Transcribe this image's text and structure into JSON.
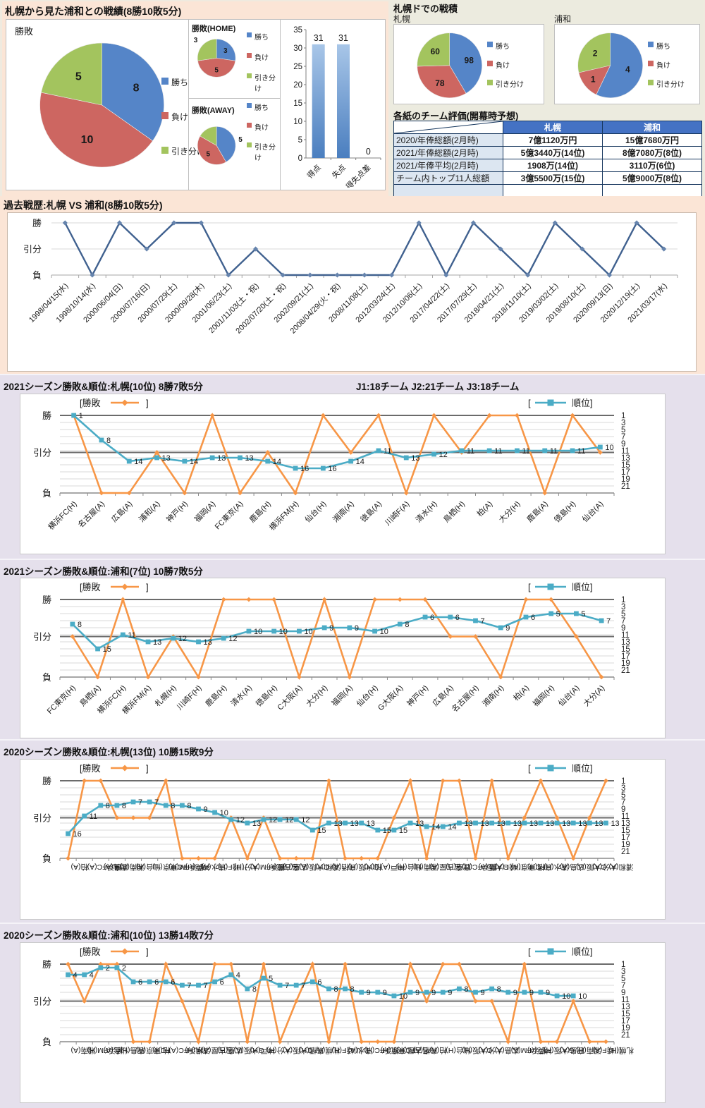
{
  "palette": {
    "win_blue": "#5585c8",
    "lose_red": "#cd6661",
    "draw_green": "#a3c45e",
    "orange": "#f79646",
    "teal": "#4bacc6",
    "history_line": "#40618f",
    "history_marker": "#6684ad",
    "bar_blue_top": "#a8c6e8",
    "bar_blue_bottom": "#4a7ebf",
    "table_header": "#4472c4",
    "grid_light": "#d8d8d8",
    "grid_dark": "#6b6b6b",
    "axis_gray": "#a6a6a6"
  },
  "axis_levels": {
    "win": "勝",
    "draw": "引分",
    "lose": "負"
  },
  "legend": {
    "result_open": "[勝敗",
    "result_close": "]",
    "rank_open": "[",
    "rank_label": "順位]"
  },
  "sections": {
    "head_to_head": {
      "title": "札幌から見た浦和との戦績(8勝10敗5分)"
    },
    "dome": {
      "title": "札幌ドでの戦積",
      "sapporo_label": "札幌",
      "urawa_label": "浦和"
    },
    "ratings_table": {
      "title": "各紙のチーム評価(開幕時予想)",
      "col_sapporo": "札幌",
      "col_urawa": "浦和",
      "rows": [
        {
          "label": "2020/年俸総額(2月時)",
          "sapporo": "7億1120万円",
          "urawa": "15億7680万円"
        },
        {
          "label": "2021/年俸総額(2月時)",
          "sapporo": "5億3440万(14位)",
          "urawa": "8億7080万(8位)"
        },
        {
          "label": "2021/年俸平均(2月時)",
          "sapporo": "1908万(14位)",
          "urawa": "3110万(6位)"
        },
        {
          "label": "チーム内トップ11人総額",
          "sapporo": "3億5500万(15位)",
          "urawa": "5億9000万(8位)"
        },
        {
          "label": "",
          "sapporo": "",
          "urawa": ""
        }
      ]
    },
    "history": {
      "title": "過去戦歴:札幌 VS 浦和(8勝10敗5分)"
    },
    "s2021_sapporo": {
      "title": "2021シーズン勝敗&順位:札幌(10位) 8勝7敗5分",
      "note": "J1:18チーム  J2:21チーム  J3:18チーム"
    },
    "s2021_urawa": {
      "title": "2021シーズン勝敗&順位:浦和(7位) 10勝7敗5分"
    },
    "s2020_sapporo": {
      "title": "2020シーズン勝敗&順位:札幌(13位) 10勝15敗9分"
    },
    "s2020_urawa": {
      "title": "2020シーズン勝敗&順位:浦和(10位) 13勝14敗7分"
    }
  },
  "chart_data": {
    "main_pie": {
      "type": "pie",
      "title": "勝敗",
      "r": 88,
      "vfs": 16,
      "slices": [
        {
          "label": "勝ち",
          "role": "win",
          "value": 8,
          "lr": 0.62
        },
        {
          "label": "負け",
          "role": "lose",
          "value": 10,
          "lr": 0.6
        },
        {
          "label": "引き分け",
          "role": "draw",
          "value": 5,
          "lr": 0.6
        }
      ]
    },
    "home_pie": {
      "type": "pie",
      "title": "勝敗(HOME)",
      "r": 27,
      "vfs": 10,
      "slices": [
        {
          "label": "勝ち",
          "role": "win",
          "value": 3,
          "lr": 0.62
        },
        {
          "label": "負け",
          "role": "lose",
          "value": 5,
          "lr": 0.62
        },
        {
          "label": "引き分け",
          "role": "draw",
          "value": 3,
          "lr": 1.45
        }
      ]
    },
    "away_pie": {
      "type": "pie",
      "title": "勝敗(AWAY)",
      "r": 27,
      "vfs": 10,
      "slices": [
        {
          "label": "勝ち",
          "role": "win",
          "value": 5,
          "lr": 1.3
        },
        {
          "label": "負け",
          "role": "lose",
          "value": 5,
          "lr": 0.62
        },
        {
          "label": "引き分け",
          "role": "draw",
          "value": 2,
          "lr": 1.45
        }
      ]
    },
    "points_bar": {
      "type": "bar",
      "categories": [
        "得点",
        "失点",
        "得失点差"
      ],
      "values": [
        31,
        31,
        0
      ],
      "ylabels": [
        0,
        5,
        10,
        15,
        20,
        25,
        30,
        35
      ],
      "ylim": [
        0,
        35
      ]
    },
    "dome_sapporo_pie": {
      "type": "pie",
      "r": 46,
      "vfs": 12,
      "slices": [
        {
          "label": "勝ち",
          "role": "win",
          "value": 98,
          "lr": 0.62
        },
        {
          "label": "負け",
          "role": "lose",
          "value": 78,
          "lr": 0.62
        },
        {
          "label": "引き分け",
          "role": "draw",
          "value": 60,
          "lr": 0.62
        }
      ]
    },
    "dome_urawa_pie": {
      "type": "pie",
      "r": 46,
      "vfs": 12,
      "slices": [
        {
          "label": "勝ち",
          "role": "win",
          "value": 4,
          "lr": 0.55
        },
        {
          "label": "負け",
          "role": "lose",
          "value": 1,
          "lr": 0.68
        },
        {
          "label": "引き分け",
          "role": "draw",
          "value": 2,
          "lr": 0.6
        }
      ]
    },
    "history_line": {
      "type": "line",
      "levels": [
        "勝",
        "引分",
        "負"
      ],
      "categories": [
        "1998/04/15(水)",
        "1998/10/14(水)",
        "2000/06/04(日)",
        "2000/07/16(日)",
        "2000/07/29(土)",
        "2000/09/28(木)",
        "2001/06/23(土)",
        "2001/11/03(土・祝)",
        "2002/07/20(土・祝)",
        "2002/09/21(土)",
        "2008/04/29(火・祝)",
        "2008/11/08(土)",
        "2012/03/24(土)",
        "2012/10/06(土)",
        "2017/04/22(土)",
        "2017/07/29(土)",
        "2018/04/21(土)",
        "2018/11/10(土)",
        "2019/03/02(土)",
        "2019/08/10(土)",
        "2020/09/13(日)",
        "2020/12/19(土)",
        "2021/03/17(水)"
      ],
      "results": [
        "勝",
        "負",
        "勝",
        "引分",
        "勝",
        "勝",
        "負",
        "引分",
        "負",
        "負",
        "負",
        "負",
        "負",
        "勝",
        "負",
        "勝",
        "引分",
        "負",
        "勝",
        "引分",
        "負",
        "勝",
        "引分"
      ]
    },
    "s2021_sapporo": {
      "type": "season",
      "label_rotate": 45,
      "rank_axis": [
        1,
        3,
        5,
        7,
        9,
        11,
        13,
        15,
        17,
        19,
        21
      ],
      "categories": [
        "横浜FC(H)",
        "名古屋(A)",
        "広島(A)",
        "浦和(A)",
        "神戸(H)",
        "福岡(A)",
        "FC東京(A)",
        "鹿島(H)",
        "横浜FM(H)",
        "仙台(H)",
        "湘南(A)",
        "徳島(A)",
        "川崎F(A)",
        "清水(H)",
        "鳥栖(H)",
        "柏(A)",
        "大分(H)",
        "鹿島(A)",
        "徳島(H)",
        "仙台(A)"
      ],
      "results": [
        "勝",
        "負",
        "負",
        "引分",
        "負",
        "勝",
        "負",
        "引分",
        "負",
        "勝",
        "引分",
        "勝",
        "負",
        "勝",
        "引分",
        "勝",
        "勝",
        "負",
        "勝",
        "引分"
      ],
      "ranks": [
        1,
        8,
        14,
        13,
        14,
        13,
        13,
        14,
        16,
        16,
        14,
        11,
        13,
        12,
        11,
        11,
        11,
        11,
        11,
        10
      ]
    },
    "s2021_urawa": {
      "type": "season",
      "label_rotate": 45,
      "rank_axis": [
        1,
        3,
        5,
        7,
        9,
        11,
        13,
        15,
        17,
        19,
        21
      ],
      "categories": [
        "FC東京(H)",
        "鳥栖(A)",
        "横浜FC(H)",
        "横浜FM(A)",
        "札幌(H)",
        "川崎F(H)",
        "鹿島(H)",
        "清水(A)",
        "徳島(H)",
        "C大阪(A)",
        "大分(H)",
        "福岡(A)",
        "仙台(H)",
        "G大阪(A)",
        "神戸(H)",
        "広島(A)",
        "名古屋(H)",
        "湘南(H)",
        "柏(A)",
        "福岡(H)",
        "仙台(A)",
        "大分(A)"
      ],
      "results": [
        "引分",
        "負",
        "勝",
        "負",
        "引分",
        "負",
        "勝",
        "勝",
        "勝",
        "負",
        "勝",
        "負",
        "勝",
        "勝",
        "勝",
        "引分",
        "引分",
        "負",
        "勝",
        "勝",
        "引分",
        "負"
      ],
      "ranks": [
        8,
        15,
        11,
        13,
        12,
        13,
        12,
        10,
        10,
        10,
        9,
        9,
        10,
        8,
        6,
        6,
        7,
        9,
        6,
        5,
        5,
        7
      ]
    },
    "s2020_sapporo": {
      "type": "season",
      "label_rotate": 90,
      "rank_axis": [
        1,
        3,
        5,
        7,
        9,
        11,
        13,
        15,
        17,
        19,
        21
      ],
      "categories": [
        "柏(A)",
        "横浜FC(A)",
        "鹿島(A)",
        "湘南(A)",
        "仙台(A)",
        "FC東京(H)",
        "横浜FM(H)",
        "神戸(H)",
        "清水(A)",
        "川崎F(H)",
        "大分(H)",
        "横浜FM(A)",
        "名古屋(H)",
        "広島(H)",
        "C大阪(A)",
        "浦和(H)",
        "鳥栖(A)",
        "G大阪(H)",
        "柏(H)",
        "神戸(A)",
        "仙台(H)",
        "湘南(H)",
        "名古屋(A)",
        "鹿島(H)",
        "横浜FC(H)",
        "G大阪(A)",
        "川崎F(A)",
        "FC東京(A)",
        "鳥栖(H)",
        "清水(H)",
        "広島(A)",
        "C大阪(H)",
        "大分(A)",
        "浦和(A)"
      ],
      "results": [
        "負",
        "勝",
        "勝",
        "引分",
        "引分",
        "引分",
        "勝",
        "負",
        "負",
        "負",
        "引分",
        "負",
        "引分",
        "負",
        "負",
        "負",
        "勝",
        "負",
        "負",
        "負",
        "引分",
        "勝",
        "負",
        "勝",
        "勝",
        "負",
        "勝",
        "負",
        "引分",
        "勝",
        "引分",
        "負",
        "引分",
        "勝"
      ],
      "ranks": [
        16,
        11,
        8,
        8,
        7,
        7,
        8,
        8,
        9,
        10,
        12,
        13,
        12,
        12,
        12,
        15,
        13,
        13,
        13,
        15,
        15,
        13,
        14,
        14,
        13,
        13,
        13,
        13,
        13,
        13,
        13,
        13,
        13,
        13
      ]
    },
    "s2020_urawa": {
      "type": "season",
      "label_rotate": 90,
      "rank_axis": [
        1,
        3,
        5,
        7,
        9,
        11,
        13,
        15,
        17,
        19,
        21
      ],
      "categories": [
        "湘南(A)",
        "横浜FM(H)",
        "仙台(A)",
        "鹿島(H)",
        "FC東京(A)",
        "柏(H)",
        "横浜FC(A)",
        "清水(H)",
        "名古屋(A)",
        "広島(H)",
        "G大阪(A)",
        "神戸(H)",
        "大分(H)",
        "C大阪(A)",
        "鳥栖(H)",
        "札幌(A)",
        "川崎F(H)",
        "清水(A)",
        "横浜FC(H)",
        "FC東京(H)",
        "名古屋(H)",
        "鳥栖(A)",
        "柏(A)",
        "仙台(H)",
        "C大阪(H)",
        "大分(A)",
        "広島(A)",
        "横浜FM(A)",
        "神戸(A)",
        "G大阪(H)",
        "鹿島(A)",
        "湘南(H)",
        "川崎F(A)",
        "札幌(H)"
      ],
      "results": [
        "勝",
        "引分",
        "勝",
        "勝",
        "負",
        "負",
        "勝",
        "引分",
        "負",
        "勝",
        "勝",
        "負",
        "勝",
        "負",
        "引分",
        "勝",
        "負",
        "勝",
        "負",
        "負",
        "負",
        "勝",
        "引分",
        "勝",
        "勝",
        "引分",
        "引分",
        "負",
        "勝",
        "負",
        "負",
        "引分",
        "負",
        "負"
      ],
      "ranks": [
        4,
        4,
        2,
        2,
        6,
        6,
        6,
        7,
        7,
        6,
        4,
        8,
        5,
        7,
        7,
        6,
        8,
        8,
        9,
        9,
        10,
        9,
        9,
        9,
        8,
        9,
        8,
        9,
        9,
        9,
        10,
        10,
        null,
        null
      ]
    }
  }
}
